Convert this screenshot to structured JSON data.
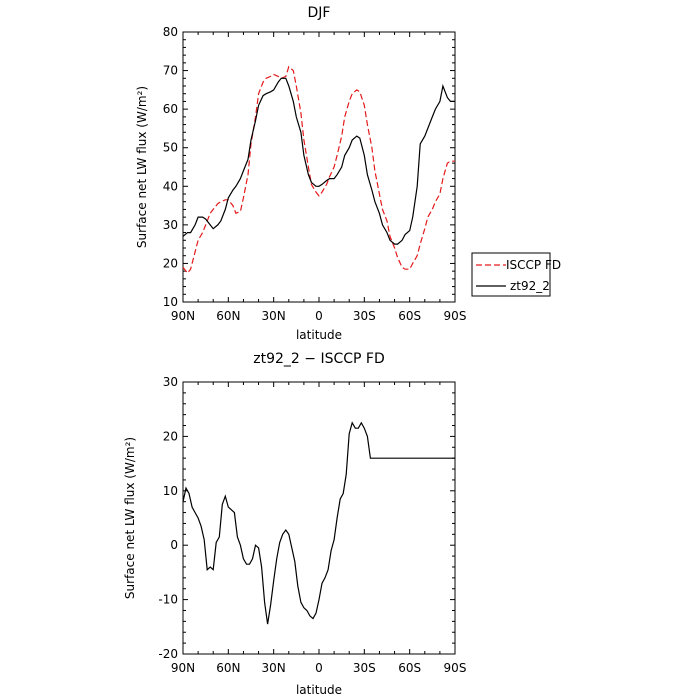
{
  "chart_data": [
    {
      "type": "line",
      "title": "DJF",
      "xlabel": "latitude",
      "ylabel": "Surface net LW flux (W/m²)",
      "x_ticks": [
        "90N",
        "60N",
        "30N",
        "0",
        "30S",
        "60S",
        "90S"
      ],
      "x_tick_values": [
        90,
        60,
        30,
        0,
        -30,
        -60,
        -90
      ],
      "xlim": [
        90,
        -90
      ],
      "ylim": [
        10,
        80
      ],
      "y_ticks": [
        10,
        20,
        30,
        40,
        50,
        60,
        70,
        80
      ],
      "grid": false,
      "legend_position": "right",
      "series": [
        {
          "name": "ISCCP FD",
          "color": "#e41a1c",
          "dash": "dashed",
          "x": [
            90,
            87,
            85,
            82,
            80,
            77,
            75,
            72,
            70,
            67,
            65,
            62,
            60,
            57,
            55,
            52,
            50,
            47,
            45,
            42,
            40,
            37,
            35,
            32,
            30,
            27,
            25,
            22,
            20,
            17,
            15,
            12,
            10,
            7,
            5,
            2,
            0,
            -2,
            -5,
            -7,
            -10,
            -12,
            -15,
            -17,
            -20,
            -22,
            -25,
            -27,
            -30,
            -32,
            -35,
            -37,
            -40,
            -42,
            -45,
            -47,
            -50,
            -52,
            -55,
            -57,
            -60,
            -62,
            -65,
            -67,
            -70,
            -72,
            -75,
            -77,
            -80,
            -82,
            -85,
            -87,
            -90
          ],
          "y": [
            19,
            17.5,
            18.5,
            23,
            26,
            28,
            30,
            33,
            34,
            35.5,
            36,
            36.5,
            36.5,
            35,
            33,
            33.5,
            37,
            43,
            51,
            58,
            64,
            67,
            68,
            68.5,
            69,
            68.5,
            68,
            68.5,
            71,
            70,
            66,
            59,
            52,
            45,
            40.5,
            38.5,
            37.5,
            38.5,
            40.5,
            42.5,
            45,
            48,
            53,
            58,
            62,
            64,
            65,
            64.5,
            61,
            56,
            50,
            44,
            38,
            34,
            31,
            27,
            24,
            21.5,
            19,
            18.5,
            18.5,
            20,
            22,
            25,
            29,
            32,
            34,
            36,
            38,
            42,
            46,
            46.5,
            46.5
          ]
        },
        {
          "name": "zt92_2",
          "color": "#000000",
          "dash": "solid",
          "x": [
            90,
            87,
            85,
            82,
            80,
            77,
            75,
            72,
            70,
            67,
            65,
            62,
            60,
            57,
            55,
            52,
            50,
            47,
            45,
            42,
            40,
            37,
            35,
            32,
            30,
            27,
            25,
            22,
            20,
            17,
            15,
            12,
            10,
            7,
            5,
            2,
            0,
            -2,
            -5,
            -7,
            -10,
            -12,
            -15,
            -17,
            -20,
            -22,
            -25,
            -27,
            -30,
            -32,
            -35,
            -37,
            -40,
            -42,
            -45,
            -47,
            -50,
            -52,
            -55,
            -57,
            -60,
            -62,
            -65,
            -67,
            -70,
            -72,
            -75,
            -77,
            -80,
            -82,
            -85,
            -87,
            -90
          ],
          "y": [
            27,
            28,
            28,
            30,
            32,
            32,
            31.5,
            30,
            29,
            30,
            31,
            34,
            37,
            39,
            40,
            42,
            44,
            47,
            52,
            57,
            61,
            63.5,
            64,
            64.5,
            65,
            67,
            68,
            68,
            66,
            62,
            58,
            54,
            48,
            43,
            41,
            40,
            40,
            40.5,
            41.5,
            42,
            42,
            43,
            45,
            48,
            50,
            52,
            53,
            52.5,
            48,
            43,
            39,
            36,
            33,
            30,
            28,
            26,
            25,
            25,
            26,
            27.5,
            28.5,
            32,
            40,
            51,
            53,
            55,
            58,
            60,
            62,
            66,
            63,
            62,
            62
          ]
        }
      ]
    },
    {
      "type": "line",
      "title": "zt92_2 − ISCCP FD",
      "xlabel": "latitude",
      "ylabel": "Surface net LW flux (W/m²)",
      "x_ticks": [
        "90N",
        "60N",
        "30N",
        "0",
        "30S",
        "60S",
        "90S"
      ],
      "x_tick_values": [
        90,
        60,
        30,
        0,
        -30,
        -60,
        -90
      ],
      "xlim": [
        90,
        -90
      ],
      "ylim": [
        -20,
        30
      ],
      "y_ticks": [
        -20,
        -10,
        0,
        10,
        20,
        30
      ],
      "grid": false,
      "series": [
        {
          "color": "#000000",
          "dash": "solid",
          "x": [
            90,
            88,
            86,
            84,
            82,
            80,
            78,
            76,
            74,
            72,
            70,
            68,
            66,
            64,
            62,
            60,
            58,
            56,
            54,
            52,
            50,
            48,
            46,
            44,
            42,
            40,
            38,
            36,
            34,
            32,
            30,
            28,
            26,
            24,
            22,
            20,
            18,
            16,
            14,
            12,
            10,
            8,
            6,
            4,
            2,
            0,
            -2,
            -4,
            -6,
            -8,
            -10,
            -12,
            -14,
            -16,
            -18,
            -20,
            -22,
            -24,
            -26,
            -28,
            -30,
            -32,
            -34,
            -36,
            -38,
            -40,
            -42,
            -44,
            -46,
            -48,
            -50,
            -52,
            -54,
            -56,
            -58,
            -60,
            -62,
            -64,
            -66,
            -68,
            -70,
            -72,
            -74,
            -76,
            -78,
            -80,
            -82,
            -84,
            -86,
            -88,
            -90
          ],
          "y": [
            8,
            10.5,
            9.5,
            7,
            6,
            5,
            3.5,
            1,
            -4.5,
            -4,
            -4.5,
            0.5,
            1.5,
            7.5,
            9,
            7,
            6.5,
            6,
            1.5,
            0,
            -2.5,
            -3.5,
            -3.5,
            -2.5,
            0,
            -0.5,
            -4,
            -10.5,
            -14.5,
            -11,
            -6.5,
            -2.5,
            0.5,
            2,
            2.8,
            2,
            -0.5,
            -3,
            -7.5,
            -10.5,
            -11.5,
            -12,
            -13,
            -13.5,
            -12.5,
            -10,
            -7,
            -6,
            -4.5,
            -1,
            1,
            5,
            8.5,
            9.5,
            13,
            20.5,
            22.5,
            21.5,
            21.5,
            22.5,
            21.5,
            20,
            16,
            16,
            16,
            16,
            16,
            16,
            16,
            16,
            16,
            16,
            16,
            16,
            16,
            16,
            16,
            16,
            16,
            16,
            16,
            16,
            16,
            16,
            16,
            16,
            16,
            16,
            16,
            16,
            16
          ]
        }
      ]
    }
  ]
}
